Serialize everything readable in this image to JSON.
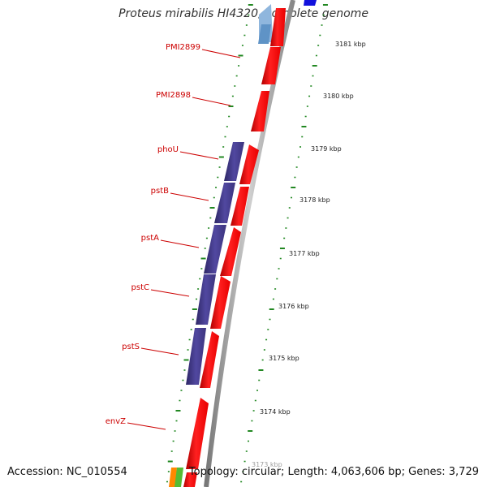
{
  "title": "Proteus mirabilis HI4320, complete genome",
  "footer": {
    "accession": "Accession: NC_010554",
    "summary": "Topology: circular; Length: 4,063,606 bp; Genes: 3,729"
  },
  "gene_labels": [
    "PMI2899",
    "PMI2898",
    "phoU",
    "pstB",
    "pstA",
    "pstC",
    "pstS",
    "envZ"
  ],
  "scale_ticks": [
    "3181 kbp",
    "3180 kbp",
    "3179 kbp",
    "3178 kbp",
    "3177 kbp",
    "3176 kbp",
    "3175 kbp",
    "3174 kbp",
    "3173 kbp"
  ],
  "colors": {
    "forward_gene": "#ee1111",
    "pst_operon": "#4a3f8f",
    "light_blue_feature": "#8fb6dd",
    "blue_feature": "#1111dd",
    "gc_skew": "#228822",
    "backbone": "#999999"
  }
}
